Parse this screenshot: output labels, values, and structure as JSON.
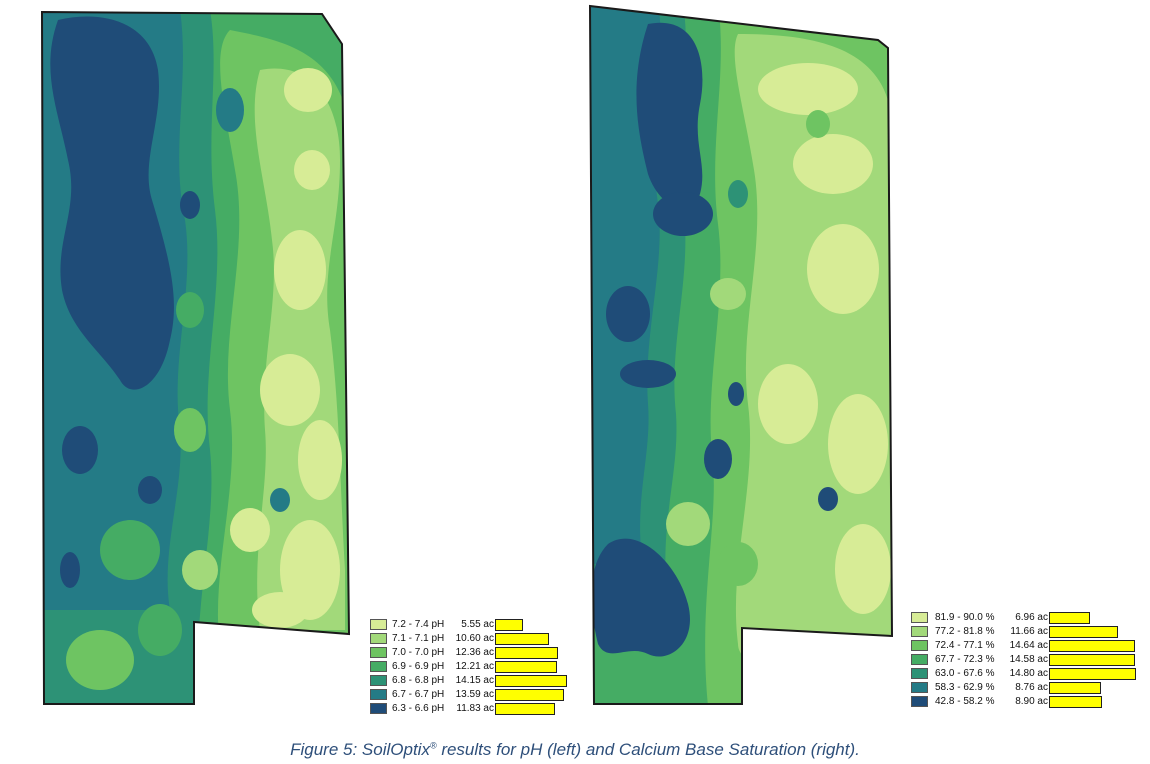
{
  "colors": {
    "class_1": "#d7ec96",
    "class_2": "#a2d97a",
    "class_3": "#6ec462",
    "class_4": "#45ac64",
    "class_5": "#2d9276",
    "class_6": "#247b86",
    "class_7": "#1f4c78",
    "bar": "#ffff00"
  },
  "maps": [
    {
      "name": "pH",
      "legend": [
        {
          "range": "7.2 - 7.4 pH",
          "area": "5.55 ac",
          "acres": 5.55
        },
        {
          "range": "7.1 - 7.1 pH",
          "area": "10.60 ac",
          "acres": 10.6
        },
        {
          "range": "7.0 - 7.0 pH",
          "area": "12.36 ac",
          "acres": 12.36
        },
        {
          "range": "6.9 - 6.9 pH",
          "area": "12.21 ac",
          "acres": 12.21
        },
        {
          "range": "6.8 - 6.8 pH",
          "area": "14.15 ac",
          "acres": 14.15
        },
        {
          "range": "6.7 - 6.7 pH",
          "area": "13.59 ac",
          "acres": 13.59
        },
        {
          "range": "6.3 - 6.6 pH",
          "area": "11.83 ac",
          "acres": 11.83
        }
      ]
    },
    {
      "name": "Calcium Base Saturation",
      "legend": [
        {
          "range": "81.9 - 90.0 %",
          "area": "6.96 ac",
          "acres": 6.96
        },
        {
          "range": "77.2 - 81.8 %",
          "area": "11.66 ac",
          "acres": 11.66
        },
        {
          "range": "72.4 - 77.1 %",
          "area": "14.64 ac",
          "acres": 14.64
        },
        {
          "range": "67.7 - 72.3 %",
          "area": "14.58 ac",
          "acres": 14.58
        },
        {
          "range": "63.0 - 67.6 %",
          "area": "14.80 ac",
          "acres": 14.8
        },
        {
          "range": "58.3 - 62.9 %",
          "area": "8.76 ac",
          "acres": 8.76
        },
        {
          "range": "42.8 - 58.2 %",
          "area": "8.90 ac",
          "acres": 8.9
        }
      ]
    }
  ],
  "caption": {
    "pre": "Figure 5: SoilOptix",
    "mark": "®",
    "post": " results for pH (left) and Calcium Base Saturation (right)."
  }
}
